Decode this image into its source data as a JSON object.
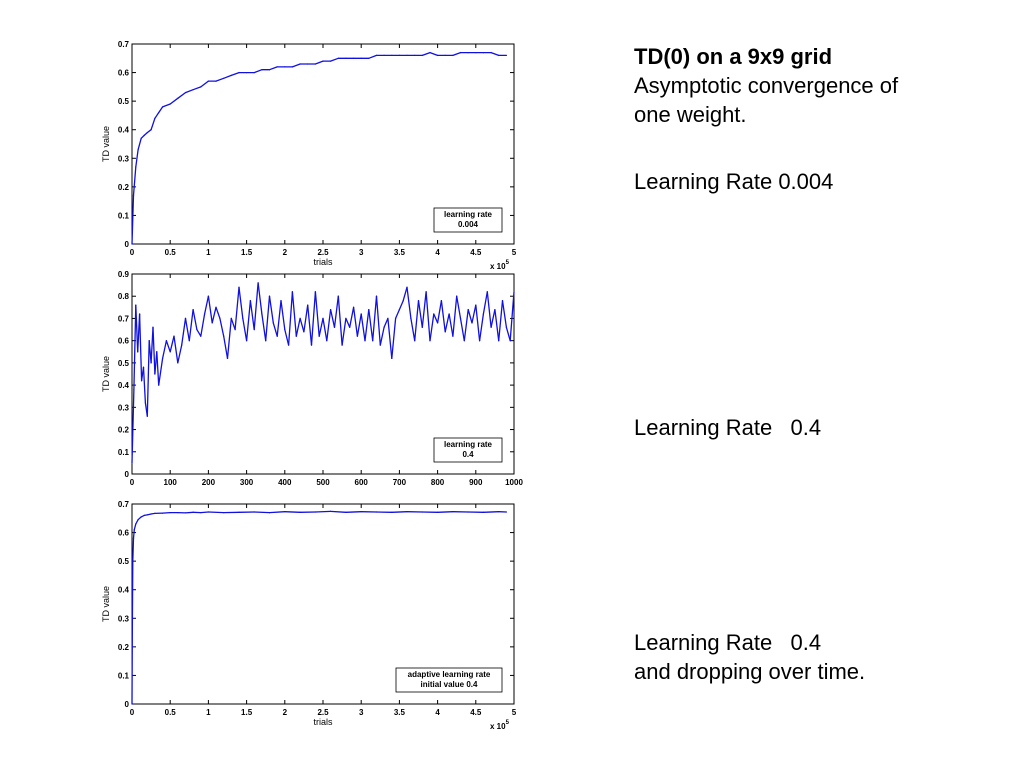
{
  "captions": {
    "title": "TD(0) on a 9x9 grid",
    "line1": "Asymptotic convergence of",
    "line2": "one weight.",
    "rate1": "Learning Rate 0.004",
    "rate2": "Learning Rate   0.4",
    "rate3a": "Learning Rate   0.4",
    "rate3b": "and dropping over time."
  },
  "colors": {
    "series": "#1010e0",
    "axis": "#000000"
  },
  "chart_data": [
    {
      "type": "line",
      "title": "",
      "xlabel": "trials",
      "ylabel": "TD value",
      "x_multiplier_label": "x 10^5",
      "xlim": [
        0,
        5
      ],
      "ylim": [
        0,
        0.7
      ],
      "xticks": [
        "0",
        "0.5",
        "1",
        "1.5",
        "2",
        "2.5",
        "3",
        "3.5",
        "4",
        "4.5",
        "5"
      ],
      "yticks": [
        "0",
        "0.1",
        "0.2",
        "0.3",
        "0.4",
        "0.5",
        "0.6",
        "0.7"
      ],
      "legend": [
        "learning rate",
        "0.004"
      ],
      "legend_position": "bottom-right",
      "grid": false,
      "series": [
        {
          "x": [
            0,
            0.02,
            0.05,
            0.08,
            0.12,
            0.16,
            0.2,
            0.25,
            0.3,
            0.35,
            0.4,
            0.5,
            0.6,
            0.7,
            0.8,
            0.9,
            1.0,
            1.1,
            1.2,
            1.3,
            1.4,
            1.5,
            1.6,
            1.7,
            1.8,
            1.9,
            2.0,
            2.1,
            2.2,
            2.3,
            2.4,
            2.5,
            2.6,
            2.7,
            2.8,
            2.9,
            3.0,
            3.1,
            3.2,
            3.3,
            3.4,
            3.5,
            3.6,
            3.7,
            3.8,
            3.9,
            4.0,
            4.1,
            4.2,
            4.3,
            4.4,
            4.5,
            4.6,
            4.7,
            4.8,
            4.9
          ],
          "y": [
            0,
            0.17,
            0.27,
            0.33,
            0.37,
            0.38,
            0.39,
            0.4,
            0.44,
            0.46,
            0.48,
            0.49,
            0.51,
            0.53,
            0.54,
            0.55,
            0.57,
            0.57,
            0.58,
            0.59,
            0.6,
            0.6,
            0.6,
            0.61,
            0.61,
            0.62,
            0.62,
            0.62,
            0.63,
            0.63,
            0.63,
            0.64,
            0.64,
            0.65,
            0.65,
            0.65,
            0.65,
            0.65,
            0.66,
            0.66,
            0.66,
            0.66,
            0.66,
            0.66,
            0.66,
            0.67,
            0.66,
            0.66,
            0.66,
            0.67,
            0.67,
            0.67,
            0.67,
            0.67,
            0.66,
            0.66
          ]
        }
      ]
    },
    {
      "type": "line",
      "title": "",
      "xlabel": "",
      "ylabel": "TD value",
      "xlim": [
        0,
        1000
      ],
      "ylim": [
        0,
        0.9
      ],
      "xticks": [
        "0",
        "100",
        "200",
        "300",
        "400",
        "500",
        "600",
        "700",
        "800",
        "900",
        "1000"
      ],
      "yticks": [
        "0",
        "0.1",
        "0.2",
        "0.3",
        "0.4",
        "0.5",
        "0.6",
        "0.7",
        "0.8",
        "0.9"
      ],
      "legend": [
        "learning rate",
        "0.4"
      ],
      "legend_position": "bottom-right",
      "grid": false,
      "series": [
        {
          "x": [
            0,
            5,
            10,
            15,
            20,
            25,
            30,
            35,
            40,
            45,
            50,
            55,
            60,
            65,
            70,
            80,
            90,
            100,
            110,
            120,
            130,
            140,
            150,
            160,
            170,
            180,
            190,
            200,
            210,
            220,
            230,
            240,
            250,
            260,
            270,
            280,
            290,
            300,
            310,
            320,
            330,
            340,
            350,
            360,
            370,
            380,
            390,
            400,
            410,
            420,
            430,
            440,
            450,
            460,
            470,
            480,
            490,
            500,
            510,
            520,
            530,
            540,
            550,
            560,
            570,
            580,
            590,
            600,
            610,
            620,
            630,
            640,
            650,
            660,
            670,
            680,
            690,
            700,
            710,
            720,
            730,
            740,
            750,
            760,
            770,
            780,
            790,
            800,
            810,
            820,
            830,
            840,
            850,
            860,
            870,
            880,
            890,
            900,
            910,
            920,
            930,
            940,
            950,
            960,
            970,
            980,
            990,
            1000
          ],
          "y": [
            0.05,
            0.38,
            0.76,
            0.55,
            0.72,
            0.42,
            0.48,
            0.32,
            0.26,
            0.6,
            0.5,
            0.66,
            0.45,
            0.55,
            0.4,
            0.52,
            0.6,
            0.55,
            0.62,
            0.5,
            0.58,
            0.7,
            0.6,
            0.74,
            0.65,
            0.62,
            0.72,
            0.8,
            0.68,
            0.75,
            0.7,
            0.62,
            0.52,
            0.7,
            0.65,
            0.84,
            0.7,
            0.6,
            0.78,
            0.65,
            0.86,
            0.72,
            0.6,
            0.8,
            0.68,
            0.62,
            0.78,
            0.65,
            0.58,
            0.82,
            0.62,
            0.7,
            0.64,
            0.76,
            0.58,
            0.82,
            0.62,
            0.7,
            0.6,
            0.74,
            0.66,
            0.8,
            0.58,
            0.7,
            0.66,
            0.75,
            0.62,
            0.72,
            0.6,
            0.74,
            0.6,
            0.8,
            0.58,
            0.66,
            0.7,
            0.52,
            0.7,
            0.74,
            0.78,
            0.84,
            0.7,
            0.6,
            0.78,
            0.66,
            0.82,
            0.6,
            0.72,
            0.68,
            0.78,
            0.64,
            0.72,
            0.62,
            0.8,
            0.7,
            0.6,
            0.74,
            0.68,
            0.76,
            0.6,
            0.72,
            0.82,
            0.66,
            0.74,
            0.6,
            0.78,
            0.66,
            0.6,
            0.82
          ]
        }
      ]
    },
    {
      "type": "line",
      "title": "",
      "xlabel": "trials",
      "ylabel": "TD value",
      "x_multiplier_label": "x 10^5",
      "xlim": [
        0,
        5
      ],
      "ylim": [
        0,
        0.7
      ],
      "xticks": [
        "0",
        "0.5",
        "1",
        "1.5",
        "2",
        "2.5",
        "3",
        "3.5",
        "4",
        "4.5",
        "5"
      ],
      "yticks": [
        "0",
        "0.1",
        "0.2",
        "0.3",
        "0.4",
        "0.5",
        "0.6",
        "0.7"
      ],
      "legend": [
        "adaptive learning rate",
        "initial value 0.4"
      ],
      "legend_position": "bottom-right",
      "grid": false,
      "series": [
        {
          "x": [
            0,
            0.005,
            0.01,
            0.02,
            0.03,
            0.05,
            0.08,
            0.12,
            0.16,
            0.2,
            0.25,
            0.3,
            0.4,
            0.5,
            0.6,
            0.7,
            0.8,
            0.9,
            1.0,
            1.2,
            1.4,
            1.6,
            1.8,
            2.0,
            2.2,
            2.4,
            2.6,
            2.8,
            3.0,
            3.2,
            3.4,
            3.6,
            3.8,
            4.0,
            4.2,
            4.4,
            4.6,
            4.8,
            4.9
          ],
          "y": [
            0,
            0.3,
            0.5,
            0.58,
            0.61,
            0.63,
            0.645,
            0.655,
            0.66,
            0.662,
            0.665,
            0.667,
            0.668,
            0.67,
            0.67,
            0.669,
            0.671,
            0.67,
            0.672,
            0.67,
            0.671,
            0.672,
            0.67,
            0.673,
            0.671,
            0.672,
            0.674,
            0.671,
            0.673,
            0.672,
            0.671,
            0.673,
            0.672,
            0.671,
            0.673,
            0.672,
            0.671,
            0.673,
            0.672
          ]
        }
      ]
    }
  ]
}
